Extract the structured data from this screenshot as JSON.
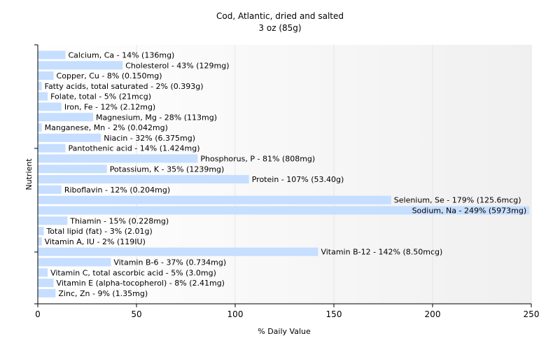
{
  "chart_data": {
    "type": "bar",
    "orientation": "horizontal",
    "title": "Cod, Atlantic, dried and salted",
    "subtitle": "3 oz (85g)",
    "xlabel": "% Daily Value",
    "ylabel": "Nutrient",
    "xlim": [
      0,
      250
    ],
    "xticks": [
      "0",
      "50",
      "100",
      "150",
      "200",
      "250"
    ],
    "grid": true,
    "bar_color": "#c6deff",
    "categories": [
      "Calcium, Ca",
      "Cholesterol",
      "Copper, Cu",
      "Fatty acids, total saturated",
      "Folate, total",
      "Iron, Fe",
      "Magnesium, Mg",
      "Manganese, Mn",
      "Niacin",
      "Pantothenic acid",
      "Phosphorus, P",
      "Potassium, K",
      "Protein",
      "Riboflavin",
      "Selenium, Se",
      "Sodium, Na",
      "Thiamin",
      "Total lipid (fat)",
      "Vitamin A, IU",
      "Vitamin B-12",
      "Vitamin B-6",
      "Vitamin C, total ascorbic acid",
      "Vitamin E (alpha-tocopherol)",
      "Zinc, Zn"
    ],
    "values": [
      14,
      43,
      8,
      2,
      5,
      12,
      28,
      2,
      32,
      14,
      81,
      35,
      107,
      12,
      179,
      249,
      15,
      3,
      2,
      142,
      37,
      5,
      8,
      9
    ],
    "labels": [
      "Calcium, Ca - 14% (136mg)",
      "Cholesterol - 43% (129mg)",
      "Copper, Cu - 8% (0.150mg)",
      "Fatty acids, total saturated - 2% (0.393g)",
      "Folate, total - 5% (21mcg)",
      "Iron, Fe - 12% (2.12mg)",
      "Magnesium, Mg - 28% (113mg)",
      "Manganese, Mn - 2% (0.042mg)",
      "Niacin - 32% (6.375mg)",
      "Pantothenic acid - 14% (1.424mg)",
      "Phosphorus, P - 81% (808mg)",
      "Potassium, K - 35% (1239mg)",
      "Protein - 107% (53.40g)",
      "Riboflavin - 12% (0.204mg)",
      "Selenium, Se - 179% (125.6mcg)",
      "Sodium, Na - 249% (5973mg)",
      "Thiamin - 15% (0.228mg)",
      "Total lipid (fat) - 3% (2.01g)",
      "Vitamin A, IU - 2% (119IU)",
      "Vitamin B-12 - 142% (8.50mcg)",
      "Vitamin B-6 - 37% (0.734mg)",
      "Vitamin C, total ascorbic acid - 5% (3.0mg)",
      "Vitamin E (alpha-tocopherol) - 8% (2.41mg)",
      "Zinc, Zn - 9% (1.35mg)"
    ]
  }
}
